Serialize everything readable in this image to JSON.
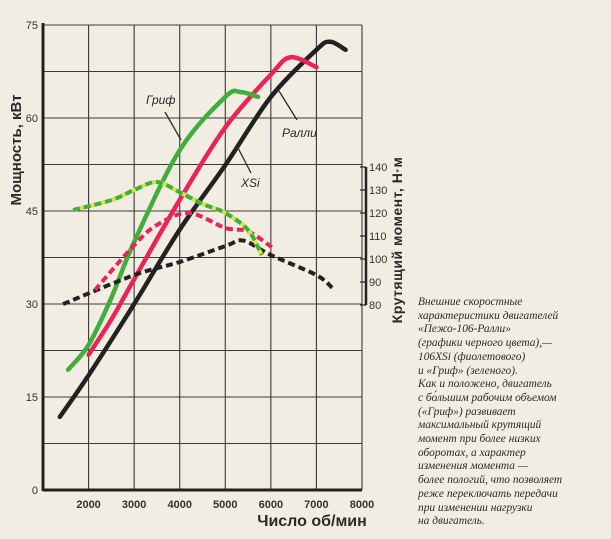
{
  "chart_data": {
    "type": "line",
    "xlabel": "Число об/мин",
    "ylabel": "Мощность, кВт",
    "y2label": "Крутящий момент, Н·м",
    "xlim": [
      1000,
      8000
    ],
    "ylim": [
      0,
      75
    ],
    "y2lim": [
      80,
      140
    ],
    "x_ticks": [
      "2000",
      "3000",
      "4000",
      "5000",
      "6000",
      "7000",
      "8000"
    ],
    "y_ticks": [
      "0",
      "15",
      "30",
      "45",
      "60",
      "75"
    ],
    "y2_ticks": [
      "80",
      "90",
      "100",
      "110",
      "120",
      "130",
      "140"
    ],
    "grid": true,
    "series": [
      {
        "name": "Ралли",
        "axis": "power",
        "style": "solid",
        "color": "#222222",
        "x": [
          1370,
          2000,
          3000,
          4000,
          5000,
          6000,
          7000,
          7300,
          7640
        ],
        "y": [
          11.8,
          18.5,
          30,
          42,
          52.4,
          63.4,
          71,
          72.3,
          71
        ]
      },
      {
        "name": "XSi",
        "axis": "power",
        "style": "solid",
        "color": "#e8245a",
        "x": [
          2000,
          2500,
          3000,
          4000,
          5000,
          6000,
          6430,
          7000
        ],
        "y": [
          21.8,
          27.5,
          34,
          46.8,
          58.5,
          67,
          69.8,
          68.2
        ]
      },
      {
        "name": "Гриф",
        "axis": "power",
        "style": "solid",
        "color": "#3fae3a",
        "x": [
          1550,
          2000,
          2500,
          3000,
          4000,
          5000,
          5330,
          5720
        ],
        "y": [
          19.4,
          23.4,
          31,
          40,
          54.8,
          63.4,
          64.2,
          63.4
        ]
      },
      {
        "axis": "torque",
        "style": "dashed",
        "color": "#222222",
        "x": [
          1440,
          3000,
          4000,
          5000,
          5400,
          6000,
          7000,
          7350
        ],
        "y": [
          80.4,
          93,
          98.7,
          105.6,
          108,
          101.7,
          93,
          87.4
        ]
      },
      {
        "axis": "torque",
        "style": "dashed",
        "color": "#e8245a",
        "x": [
          2140,
          3000,
          3500,
          4200,
          5000,
          5500,
          6030
        ],
        "y": [
          86.5,
          106,
          114.8,
          120,
          113.5,
          112,
          105
        ]
      },
      {
        "axis": "torque",
        "style": "dashed",
        "color": "#3fae3a",
        "x": [
          1660,
          2500,
          3000,
          3500,
          4000,
          4500,
          5000,
          5500,
          5800
        ],
        "y": [
          121.3,
          125.6,
          130,
          133.5,
          129,
          124,
          120,
          112.6,
          101.7
        ]
      }
    ],
    "annotations": [
      "Гриф",
      "Ралли",
      "XSi"
    ]
  },
  "caption": [
    "Внешние скоростные",
    "характеристики     двигателей",
    "«Пежо-106-Ралли»",
    "(графики черного цвета),—",
    "106XSi  (фиолетового)",
    "и «Гриф» (зеленого).",
    "Как и положено, двигатель",
    "с бо́льшим рабочим объемом",
    "(«Гриф»)  развивает",
    "максимальный  крутящий",
    "момент при более низких",
    "оборотах, а характер",
    "изменения момента —",
    "более пологий, что позволяет",
    "реже переключать передачи",
    "при изменении нагрузки",
    "на двигатель."
  ]
}
